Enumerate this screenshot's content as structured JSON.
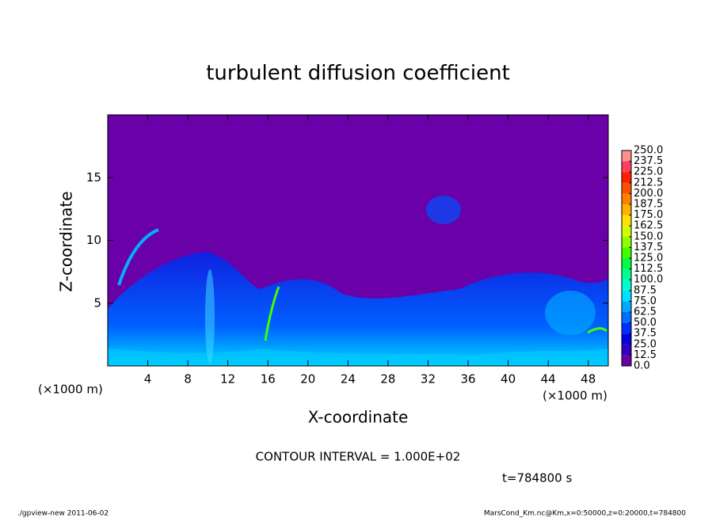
{
  "chart_data": {
    "type": "contour",
    "title": "turbulent diffusion coefficient",
    "xlabel": "X-coordinate",
    "ylabel": "Z-coordinate",
    "x_unit_left": "(×1000 m)",
    "x_unit_right": "(×1000 m)",
    "xlim": [
      0,
      50
    ],
    "ylim": [
      0,
      20
    ],
    "xticks": [
      4,
      8,
      12,
      16,
      20,
      24,
      28,
      32,
      36,
      40,
      44,
      48
    ],
    "yticks": [
      5,
      10,
      15
    ],
    "colorbar": {
      "levels": [
        {
          "value": 0,
          "label": "0.0"
        },
        12.5,
        {
          "value": 25,
          "label": "25.0"
        },
        37.5,
        {
          "value": 50,
          "label": "50.0"
        },
        62.5,
        {
          "value": 75,
          "label": "75.0"
        },
        87.5,
        {
          "value": 100,
          "label": "100.0"
        },
        112.5,
        {
          "value": 125,
          "label": "125.0"
        },
        137.5,
        {
          "value": 150,
          "label": "150.0"
        },
        162.5,
        {
          "value": 175,
          "label": "175.0"
        },
        187.5,
        {
          "value": 200,
          "label": "200.0"
        },
        212.5,
        {
          "value": 225,
          "label": "225.0"
        },
        237.5,
        {
          "value": 250,
          "label": "250.0"
        }
      ],
      "colors": [
        "#6a00a8",
        "#3000c0",
        "#0000e0",
        "#0030ff",
        "#0070ff",
        "#00a8ff",
        "#00e0ff",
        "#00ffd0",
        "#00ff90",
        "#00ff40",
        "#40ff00",
        "#90ff00",
        "#d0ff00",
        "#ffe000",
        "#ffb000",
        "#ff8000",
        "#ff5000",
        "#ff2000",
        "#ff4060",
        "#ff9090"
      ]
    },
    "contour_interval": "CONTOUR INTERVAL = 1.000E+02",
    "time_label": "t=784800 s",
    "footer_left": "./gpview-new  2011-06-02",
    "footer_right": "MarsCond_Km.nc@Km,x=0:50000,z=0:20000,t=784800"
  }
}
